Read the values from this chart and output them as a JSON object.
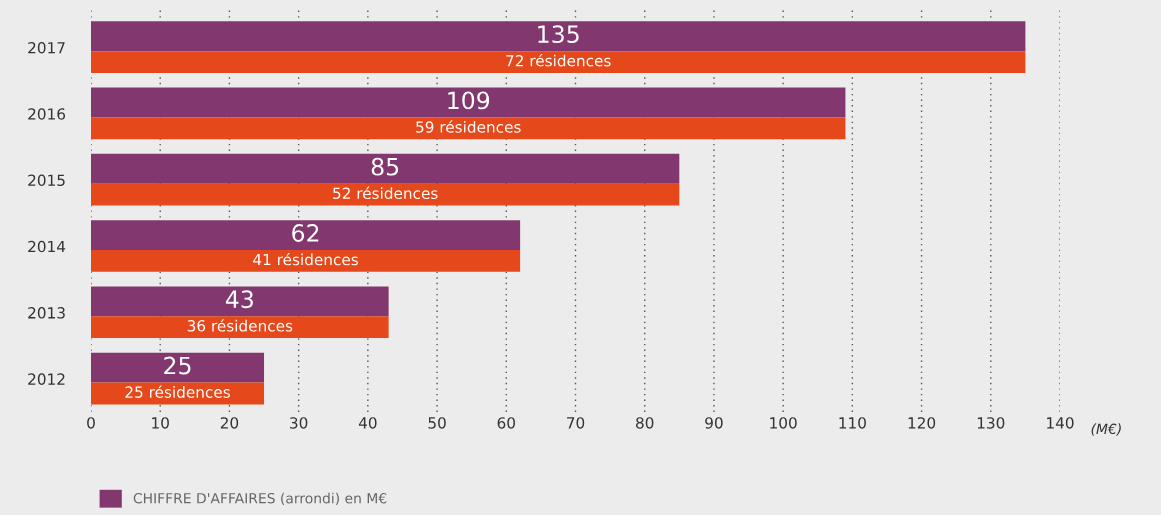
{
  "chart_data": {
    "type": "bar",
    "orientation": "horizontal",
    "categories": [
      "2017",
      "2016",
      "2015",
      "2014",
      "2013",
      "2012"
    ],
    "series": [
      {
        "name": "CHIFFRE D'AFFAIRES (arrondi) en M€",
        "color": "#82386f",
        "values": [
          135,
          109,
          85,
          62,
          43,
          25
        ],
        "value_labels": [
          "135",
          "109",
          "85",
          "62",
          "43",
          "25"
        ]
      },
      {
        "color": "#e5491b",
        "values": [
          135,
          109,
          85,
          62,
          43,
          25
        ]
      }
    ],
    "annotations": [
      {
        "text": "72 résidences",
        "y": "2017"
      },
      {
        "text": "59 résidences",
        "y": "2016"
      },
      {
        "text": "52 résidences",
        "y": "2015"
      },
      {
        "text": "41 résidences",
        "y": "2014"
      },
      {
        "text": "36 résidences",
        "y": "2013"
      },
      {
        "text": "25 résidences",
        "y": "2012"
      }
    ],
    "xlabel": "(M€)",
    "xlim": [
      0,
      140
    ],
    "xticks": [
      0,
      10,
      20,
      30,
      40,
      50,
      60,
      70,
      80,
      90,
      100,
      110,
      120,
      130,
      140
    ],
    "grid": "x",
    "legend": "bottom left"
  }
}
